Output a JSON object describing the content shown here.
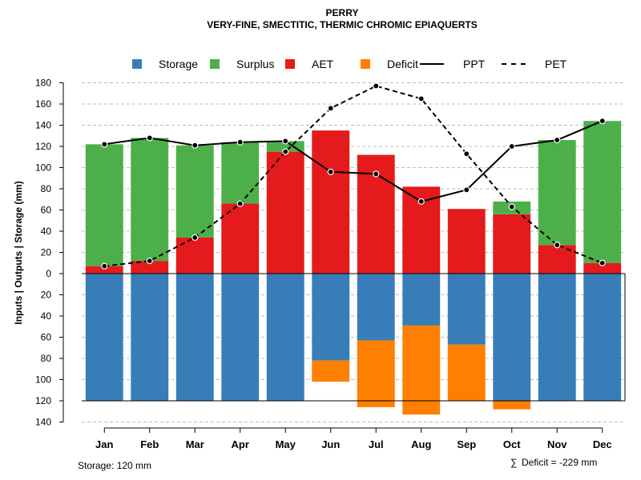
{
  "chart_data": {
    "type": "bar",
    "title": "PERRY",
    "subtitle": "VERY-FINE, SMECTITIC, THERMIC CHROMIC EPIAQUERTS",
    "ylabel": "Inputs | Outputs | Storage    (mm)",
    "ylim": [
      -140,
      180
    ],
    "y_ticks": [
      180,
      160,
      140,
      120,
      100,
      80,
      60,
      40,
      20,
      0,
      -20,
      -40,
      -60,
      -80,
      -100,
      -120,
      -140
    ],
    "y_tick_labels": [
      "180",
      "160",
      "140",
      "120",
      "100",
      "80",
      "60",
      "40",
      "20",
      "0",
      "20",
      "40",
      "60",
      "80",
      "100",
      "120",
      "140"
    ],
    "grid": true,
    "legend_position": "top",
    "categories": [
      "Jan",
      "Feb",
      "Mar",
      "Apr",
      "May",
      "Jun",
      "Jul",
      "Aug",
      "Sep",
      "Oct",
      "Nov",
      "Dec"
    ],
    "legend": [
      {
        "key": "storage",
        "label": "Storage",
        "kind": "box",
        "color": "#377EB8"
      },
      {
        "key": "surplus",
        "label": "Surplus",
        "kind": "box",
        "color": "#4DAF4A"
      },
      {
        "key": "aet",
        "label": "AET",
        "kind": "box",
        "color": "#E41A1C"
      },
      {
        "key": "deficit",
        "label": "Deficit",
        "kind": "box",
        "color": "#FF7F00"
      },
      {
        "key": "ppt",
        "label": "PPT",
        "kind": "solid",
        "color": "#000000"
      },
      {
        "key": "pet",
        "label": "PET",
        "kind": "dashed",
        "color": "#000000"
      }
    ],
    "series": [
      {
        "name": "AET",
        "key": "aet",
        "color": "#E41A1C",
        "values": [
          7,
          12,
          34,
          66,
          115,
          135,
          112,
          82,
          61,
          56,
          27,
          10
        ]
      },
      {
        "name": "Surplus",
        "key": "surplus",
        "color": "#4DAF4A",
        "values": [
          115,
          116,
          87,
          58,
          10,
          0,
          0,
          0,
          0,
          12,
          99,
          134
        ]
      },
      {
        "name": "Storage",
        "key": "storage",
        "color": "#377EB8",
        "values": [
          120,
          120,
          120,
          120,
          120,
          82,
          63,
          49,
          67,
          120,
          120,
          120
        ]
      },
      {
        "name": "Deficit",
        "key": "deficit",
        "color": "#FF7F00",
        "values": [
          0,
          0,
          0,
          0,
          0,
          20,
          63,
          84,
          53,
          8,
          0,
          0
        ]
      },
      {
        "name": "PPT",
        "key": "ppt",
        "color": "#000000",
        "values": [
          122,
          128,
          121,
          124,
          125,
          96,
          94,
          68,
          79,
          120,
          126,
          144
        ]
      },
      {
        "name": "PET",
        "key": "pet",
        "color": "#000000",
        "values": [
          7,
          12,
          34,
          66,
          115,
          156,
          177,
          165,
          113,
          63,
          27,
          10
        ]
      }
    ],
    "storage_capacity": 120,
    "annotations": {
      "storage_note": "Storage: 120 mm",
      "deficit_symbol": "∑",
      "deficit_note": "Deficit = -229 mm"
    }
  }
}
